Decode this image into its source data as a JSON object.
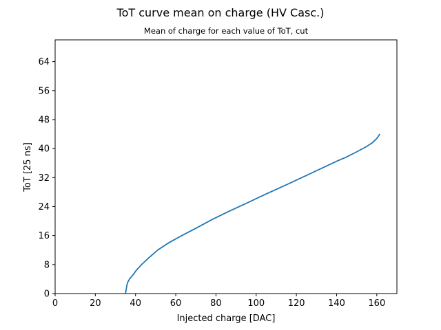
{
  "chart_data": {
    "type": "line",
    "title": "ToT curve mean on charge (HV Casc.)",
    "subtitle": "Mean of charge for each value of ToT, cut",
    "xlabel": "Injected charge [DAC]",
    "ylabel": "ToT [25 ns]",
    "xlim": [
      0,
      170
    ],
    "ylim": [
      0,
      70
    ],
    "xticks": [
      0,
      20,
      40,
      60,
      80,
      100,
      120,
      140,
      160
    ],
    "yticks": [
      0,
      8,
      16,
      24,
      32,
      40,
      48,
      56,
      64
    ],
    "grid": false,
    "color": "#1f77b4",
    "series": [
      {
        "x": [
          35.0,
          35.3,
          35.6,
          36.0,
          37.0,
          38.5,
          40.5,
          43.0,
          46.5,
          51.0,
          56.5,
          63.0,
          70.0,
          78.0,
          86.5,
          95.5,
          105.0,
          115.0,
          125.0,
          135.0,
          140.0,
          145.0,
          150.0,
          155.0,
          158.0,
          160.0,
          161.5
        ],
        "y": [
          0,
          1,
          2,
          3,
          4,
          5,
          6.5,
          8,
          9.8,
          12,
          14,
          16,
          18,
          20.4,
          22.7,
          25,
          27.5,
          30,
          32.6,
          35.2,
          36.5,
          37.7,
          39.1,
          40.6,
          41.7,
          42.8,
          44.0
        ]
      }
    ]
  }
}
